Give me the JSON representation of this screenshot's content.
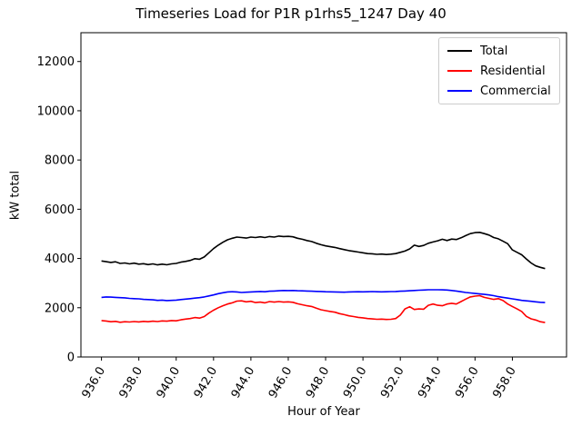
{
  "window": {
    "title": "Timeseries Load for P1R p1rhs5_1247  Day 40"
  },
  "chart_data": {
    "type": "line",
    "title": "Timeseries Load for P1R p1rhs5_1247  Day 40",
    "xlabel": "Hour of Year",
    "ylabel": "kW total",
    "grid": false,
    "background": "#ffffff",
    "spine_color": "#000000",
    "xlim": [
      934.9,
      960.9
    ],
    "ylim": [
      0,
      13170
    ],
    "xticks": [
      936,
      938,
      940,
      942,
      944,
      946,
      948,
      950,
      952,
      954,
      956,
      958
    ],
    "xtick_labels": [
      "936.0",
      "938.0",
      "940.0",
      "942.0",
      "944.0",
      "946.0",
      "948.0",
      "950.0",
      "952.0",
      "954.0",
      "956.0",
      "958.0"
    ],
    "xtick_rotation_deg": 60,
    "yticks": [
      0,
      2000,
      4000,
      6000,
      8000,
      10000,
      12000
    ],
    "ytick_labels": [
      "0",
      "2000",
      "4000",
      "6000",
      "8000",
      "10000",
      "12000"
    ],
    "x_start": 936.0,
    "x_step": 0.25,
    "legend": {
      "position": "upper right",
      "entries": [
        {
          "label": "Total",
          "color": "#000000"
        },
        {
          "label": "Residential",
          "color": "#ff0000"
        },
        {
          "label": "Commercial",
          "color": "#0000ff"
        }
      ]
    },
    "series": [
      {
        "name": "Total",
        "color": "#000000",
        "values": [
          3900,
          3870,
          3840,
          3865,
          3800,
          3820,
          3780,
          3810,
          3770,
          3790,
          3750,
          3780,
          3740,
          3770,
          3745,
          3780,
          3800,
          3850,
          3880,
          3920,
          3990,
          3970,
          4060,
          4230,
          4400,
          4540,
          4660,
          4760,
          4820,
          4870,
          4850,
          4830,
          4870,
          4850,
          4880,
          4850,
          4890,
          4870,
          4910,
          4890,
          4900,
          4880,
          4820,
          4780,
          4730,
          4690,
          4620,
          4560,
          4510,
          4480,
          4450,
          4400,
          4360,
          4320,
          4290,
          4260,
          4230,
          4200,
          4190,
          4170,
          4180,
          4160,
          4175,
          4200,
          4250,
          4300,
          4390,
          4540,
          4490,
          4530,
          4620,
          4670,
          4720,
          4780,
          4730,
          4790,
          4770,
          4840,
          4930,
          5010,
          5050,
          5060,
          5010,
          4950,
          4850,
          4800,
          4700,
          4600,
          4350,
          4250,
          4150,
          3980,
          3820,
          3700,
          3640,
          3590
        ]
      },
      {
        "name": "Residential",
        "color": "#ff0000",
        "values": [
          1480,
          1460,
          1430,
          1445,
          1410,
          1430,
          1420,
          1440,
          1425,
          1445,
          1430,
          1455,
          1440,
          1465,
          1455,
          1480,
          1470,
          1510,
          1540,
          1560,
          1600,
          1580,
          1640,
          1780,
          1900,
          2000,
          2080,
          2150,
          2200,
          2270,
          2280,
          2240,
          2260,
          2210,
          2230,
          2200,
          2250,
          2230,
          2250,
          2230,
          2240,
          2220,
          2160,
          2120,
          2080,
          2050,
          1980,
          1920,
          1880,
          1850,
          1820,
          1760,
          1720,
          1670,
          1640,
          1610,
          1590,
          1560,
          1545,
          1530,
          1540,
          1525,
          1530,
          1560,
          1700,
          1950,
          2040,
          1930,
          1950,
          1940,
          2100,
          2150,
          2100,
          2080,
          2150,
          2180,
          2150,
          2250,
          2350,
          2440,
          2470,
          2490,
          2420,
          2380,
          2340,
          2370,
          2290,
          2150,
          2050,
          1950,
          1850,
          1650,
          1550,
          1500,
          1430,
          1400
        ]
      },
      {
        "name": "Commercial",
        "color": "#0000ff",
        "values": [
          2420,
          2440,
          2430,
          2420,
          2410,
          2400,
          2380,
          2370,
          2360,
          2340,
          2330,
          2320,
          2300,
          2310,
          2290,
          2300,
          2310,
          2330,
          2350,
          2370,
          2390,
          2410,
          2440,
          2480,
          2520,
          2570,
          2610,
          2640,
          2650,
          2640,
          2620,
          2630,
          2640,
          2650,
          2660,
          2650,
          2670,
          2680,
          2690,
          2700,
          2695,
          2700,
          2690,
          2685,
          2680,
          2670,
          2665,
          2660,
          2650,
          2645,
          2640,
          2635,
          2630,
          2640,
          2645,
          2650,
          2645,
          2650,
          2655,
          2650,
          2645,
          2650,
          2655,
          2660,
          2670,
          2680,
          2690,
          2700,
          2710,
          2720,
          2730,
          2730,
          2730,
          2725,
          2720,
          2700,
          2680,
          2650,
          2620,
          2600,
          2580,
          2560,
          2540,
          2520,
          2490,
          2450,
          2420,
          2390,
          2360,
          2330,
          2300,
          2280,
          2260,
          2240,
          2220,
          2210
        ]
      }
    ]
  }
}
